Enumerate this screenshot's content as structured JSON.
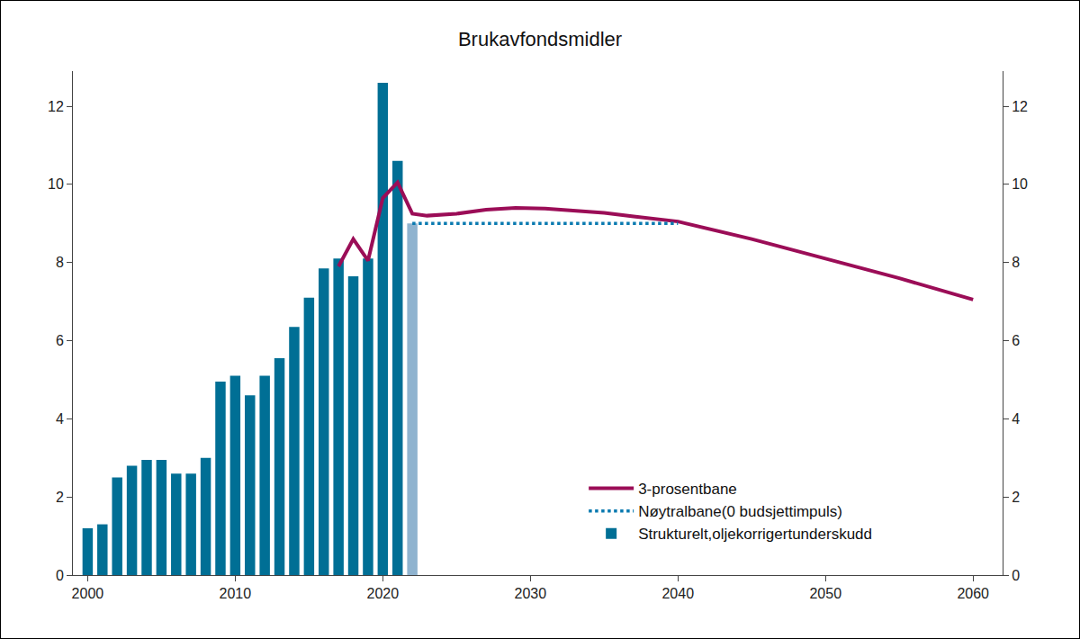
{
  "chart_data": {
    "type": "bar",
    "title": "Brukavfondsmidler",
    "xlim": [
      1999,
      2062
    ],
    "xticks": [
      2000,
      2010,
      2020,
      2030,
      2040,
      2050,
      2060
    ],
    "ylim": [
      0,
      12.9
    ],
    "yticks": [
      0,
      2,
      4,
      6,
      8,
      10,
      12
    ],
    "y2lim": [
      0,
      12.9
    ],
    "y2ticks": [
      0,
      2,
      4,
      6,
      8,
      10,
      12
    ],
    "grid": false,
    "legend": "bottom right",
    "series": [
      {
        "name": "3-prosentbane",
        "type": "line",
        "line_style": "solid",
        "color": "#9b0d57",
        "x": [
          2017,
          2018,
          2019,
          2020,
          2021,
          2022,
          2023,
          2025,
          2027,
          2029,
          2031,
          2033,
          2035,
          2037,
          2040,
          2045,
          2050,
          2055,
          2060
        ],
        "values": [
          7.9,
          8.6,
          8.05,
          9.65,
          10.05,
          9.25,
          9.2,
          9.25,
          9.35,
          9.4,
          9.38,
          9.33,
          9.27,
          9.18,
          9.05,
          8.6,
          8.1,
          7.6,
          7.05
        ]
      },
      {
        "name": "Nøytralbane(0 budsjettimpuls)",
        "type": "line",
        "line_style": "dotted",
        "color": "#0a7ab0",
        "x": [
          2022,
          2025,
          2030,
          2035,
          2040
        ],
        "values": [
          9.0,
          9.0,
          9.0,
          9.0,
          9.0
        ]
      },
      {
        "name": "Strukturelt,oljekorrigertunderskudd",
        "type": "bar",
        "color": "#006f95",
        "x": [
          2000,
          2001,
          2002,
          2003,
          2004,
          2005,
          2006,
          2007,
          2008,
          2009,
          2010,
          2011,
          2012,
          2013,
          2014,
          2015,
          2016,
          2017,
          2018,
          2019,
          2020,
          2021,
          2022
        ],
        "values": [
          1.2,
          1.3,
          2.5,
          2.8,
          2.95,
          2.95,
          2.6,
          2.6,
          3.0,
          4.95,
          5.1,
          4.6,
          5.1,
          5.55,
          6.35,
          7.1,
          7.85,
          8.1,
          7.65,
          8.1,
          12.6,
          10.6,
          9.0
        ],
        "colors": [
          "#006f95",
          "#006f95",
          "#006f95",
          "#006f95",
          "#006f95",
          "#006f95",
          "#006f95",
          "#006f95",
          "#006f95",
          "#006f95",
          "#006f95",
          "#006f95",
          "#006f95",
          "#006f95",
          "#006f95",
          "#006f95",
          "#006f95",
          "#006f95",
          "#006f95",
          "#006f95",
          "#006f95",
          "#006f95",
          "#8fb3cf"
        ]
      }
    ]
  }
}
